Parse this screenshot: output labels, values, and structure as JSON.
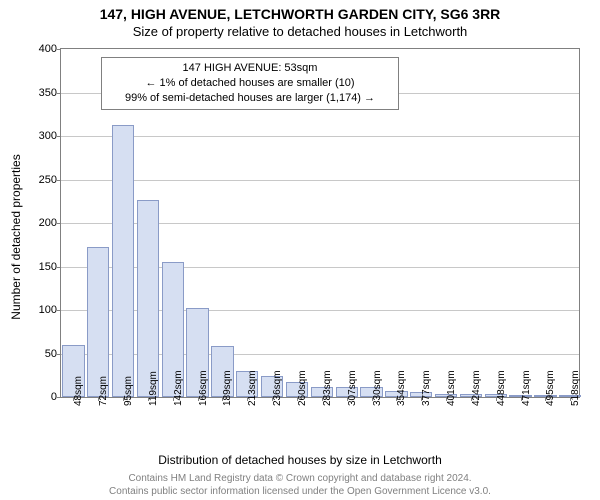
{
  "title_line1": "147, HIGH AVENUE, LETCHWORTH GARDEN CITY, SG6 3RR",
  "title_line2": "Size of property relative to detached houses in Letchworth",
  "ylabel": "Number of detached properties",
  "xlabel": "Distribution of detached houses by size in Letchworth",
  "annotation_box": {
    "line1": "147 HIGH AVENUE: 53sqm",
    "line2": "← 1% of detached houses are smaller (10)",
    "line3": "99% of semi-detached houses are larger (1,174) →"
  },
  "footer_line1": "Contains HM Land Registry data © Crown copyright and database right 2024.",
  "footer_line2": "Contains public sector information licensed under the Open Government Licence v3.0.",
  "chart": {
    "type": "histogram",
    "background_color": "#ffffff",
    "border_color": "#808080",
    "grid_color": "#c8c8c8",
    "bar_fill": "#d6dff2",
    "bar_border": "#8a9bc7",
    "font_family": "Arial",
    "title_fontsize": 14,
    "label_fontsize": 12,
    "tick_fontsize": 11,
    "y": {
      "min": 0,
      "max": 400,
      "step": 50
    },
    "x": {
      "min": 40,
      "max": 530,
      "step": 23.5
    },
    "x_labels": [
      "48sqm",
      "72sqm",
      "95sqm",
      "119sqm",
      "142sqm",
      "166sqm",
      "189sqm",
      "213sqm",
      "236sqm",
      "260sqm",
      "283sqm",
      "307sqm",
      "330sqm",
      "354sqm",
      "377sqm",
      "401sqm",
      "424sqm",
      "448sqm",
      "471sqm",
      "495sqm",
      "518sqm"
    ],
    "values": [
      60,
      172,
      313,
      226,
      155,
      102,
      59,
      30,
      24,
      17,
      12,
      12,
      11,
      7,
      6,
      4,
      4,
      3,
      2,
      2,
      1
    ],
    "bar_width_ratio": 0.9
  }
}
